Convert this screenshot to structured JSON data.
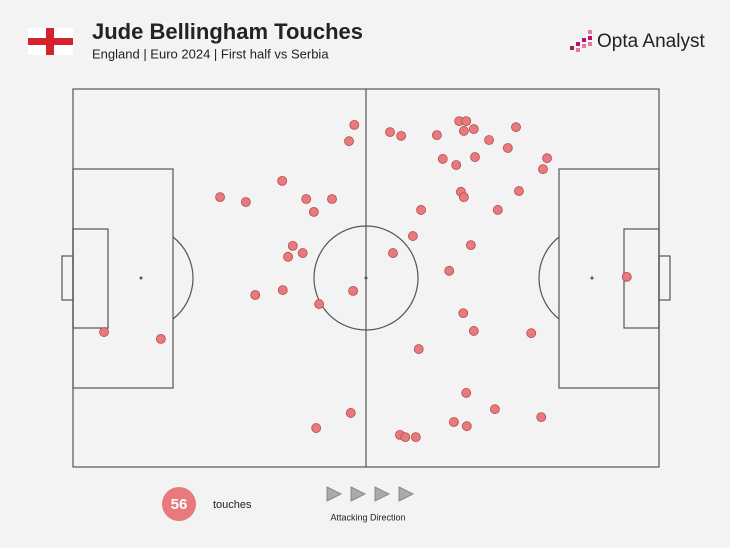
{
  "chart_data": {
    "type": "scatter",
    "title": "Jude Bellingham Touches",
    "subtitle": "England | Euro 2024 | First half vs Serbia",
    "brand": "Opta Analyst",
    "touches_count": 56,
    "touches_label": "touches",
    "direction_label": "Attacking Direction",
    "color": "#e8797d",
    "xlim": [
      0,
      100
    ],
    "ylim": [
      0,
      100
    ],
    "x": [
      48.0,
      47.1,
      54.1,
      56.0,
      62.1,
      65.9,
      67.1,
      66.7,
      68.4,
      71.0,
      75.6,
      74.2,
      80.9,
      80.2,
      63.1,
      65.4,
      68.6,
      25.1,
      29.5,
      35.7,
      39.8,
      44.2,
      41.1,
      66.2,
      66.7,
      76.1,
      59.4,
      72.5,
      37.5,
      39.2,
      36.7,
      58.0,
      67.9,
      54.6,
      64.2,
      94.5,
      31.1,
      35.8,
      42.0,
      47.8,
      5.3,
      15.0,
      66.6,
      68.4,
      78.2,
      59.0,
      67.1,
      72.0,
      79.9,
      47.4,
      65.0,
      67.2,
      41.5,
      55.8,
      56.7,
      58.5
    ],
    "values": [
      90.5,
      86.2,
      88.6,
      87.6,
      87.8,
      91.5,
      91.5,
      88.9,
      89.4,
      86.5,
      89.9,
      84.4,
      81.7,
      78.8,
      81.5,
      79.9,
      82.0,
      71.4,
      70.1,
      75.7,
      70.9,
      70.9,
      67.5,
      72.8,
      71.4,
      73.0,
      68.0,
      68.0,
      58.5,
      56.6,
      55.6,
      61.1,
      58.7,
      56.6,
      51.9,
      50.3,
      45.5,
      46.8,
      43.1,
      46.6,
      35.7,
      33.9,
      40.7,
      36.0,
      35.4,
      31.2,
      19.6,
      15.3,
      13.2,
      14.3,
      11.9,
      10.8,
      10.3,
      8.5,
      7.9,
      7.9
    ]
  }
}
